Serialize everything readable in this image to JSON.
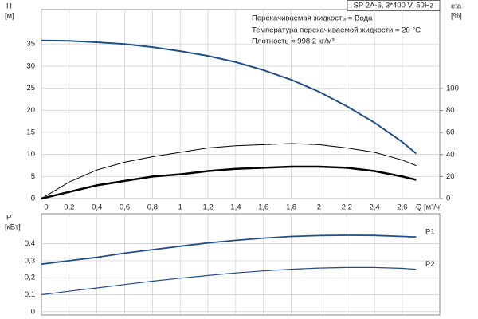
{
  "chart_data": [
    {
      "type": "line",
      "info_box": "SP 2A-6, 3*400 V, 50Hz",
      "annotations": [
        "Перекачиваемая жидкость = Вода",
        "Температура перекачиваемой жидкости = 20 °C",
        "Плотность = 998.2 кг/м³"
      ],
      "y_label": "H",
      "y_unit": "[м]",
      "y2_label": "eta",
      "y2_unit": "[%]",
      "x_label": "Q [м³/ч]",
      "x": [
        0,
        0.2,
        0.4,
        0.6,
        0.8,
        1.0,
        1.2,
        1.4,
        1.6,
        1.8,
        2.0,
        2.2,
        2.4,
        2.6,
        2.7
      ],
      "xlim": [
        0,
        2.87
      ],
      "xticks": [
        0,
        {
          "value": 0.2,
          "label": "0,2"
        },
        {
          "value": 0.4,
          "label": "0,4"
        },
        {
          "value": 0.6,
          "label": "0,6"
        },
        {
          "value": 0.8,
          "label": "0,8"
        },
        {
          "value": 1,
          "label": "1"
        },
        {
          "value": 1.2,
          "label": "1,2"
        },
        {
          "value": 1.4,
          "label": "1,4"
        },
        {
          "value": 1.6,
          "label": "1,6"
        },
        {
          "value": 1.8,
          "label": "1,8"
        },
        {
          "value": 2,
          "label": "2"
        },
        {
          "value": 2.2,
          "label": "2,2"
        },
        {
          "value": 2.4,
          "label": "2,4"
        },
        {
          "value": 2.6,
          "label": "2,6"
        }
      ],
      "ylim": [
        0,
        42.8
      ],
      "yticks": [
        0,
        5,
        10,
        15,
        20,
        25,
        30,
        35
      ],
      "y2lim": [
        0,
        171.7
      ],
      "y2ticks": [
        0,
        20,
        40,
        60,
        80,
        100
      ],
      "grid": true,
      "series": [
        {
          "color": "#1f4e8c",
          "values": [
            35.8,
            35.7,
            35.4,
            35.0,
            34.3,
            33.4,
            32.3,
            30.9,
            29.1,
            26.9,
            24.2,
            20.9,
            17.2,
            12.8,
            10.2
          ]
        },
        {
          "color": "#000000",
          "axis": "y2",
          "values": [
            0,
            15,
            26,
            33,
            38,
            42,
            46,
            48,
            49,
            50,
            49,
            46,
            42,
            35,
            30
          ]
        },
        {
          "color": "#000000",
          "axis": "y2",
          "values": [
            0,
            6,
            12,
            16,
            20,
            22,
            25,
            27,
            28,
            29,
            29,
            28,
            25,
            20,
            17
          ]
        }
      ]
    },
    {
      "type": "line",
      "y_label": "P",
      "y_unit": "[кВт]",
      "x": [
        0,
        0.2,
        0.4,
        0.6,
        0.8,
        1.0,
        1.2,
        1.4,
        1.6,
        1.8,
        2.0,
        2.2,
        2.4,
        2.6,
        2.7
      ],
      "xlim": [
        0,
        2.87
      ],
      "xticks": [
        0.2,
        0.4,
        0.6,
        0.8,
        1,
        1.2,
        1.4,
        1.6,
        1.8,
        2,
        2.2,
        2.4,
        2.6
      ],
      "ylim": [
        -0.02,
        0.577
      ],
      "yticks": [
        {
          "value": 0,
          "label": "0"
        },
        {
          "value": 0.1,
          "label": "0,1"
        },
        {
          "value": 0.2,
          "label": "0,2"
        },
        {
          "value": 0.3,
          "label": "0,3"
        },
        {
          "value": 0.4,
          "label": "0,4"
        }
      ],
      "grid": true,
      "series": [
        {
          "name": "P1",
          "color": "#1f4e8c",
          "values": [
            0.28,
            0.3,
            0.32,
            0.345,
            0.365,
            0.385,
            0.405,
            0.42,
            0.433,
            0.443,
            0.448,
            0.45,
            0.449,
            0.443,
            0.44
          ]
        },
        {
          "name": "P2",
          "color": "#1f4e8c",
          "values": [
            0.1,
            0.12,
            0.14,
            0.16,
            0.18,
            0.197,
            0.213,
            0.228,
            0.24,
            0.25,
            0.257,
            0.26,
            0.26,
            0.255,
            0.25
          ]
        }
      ]
    }
  ]
}
